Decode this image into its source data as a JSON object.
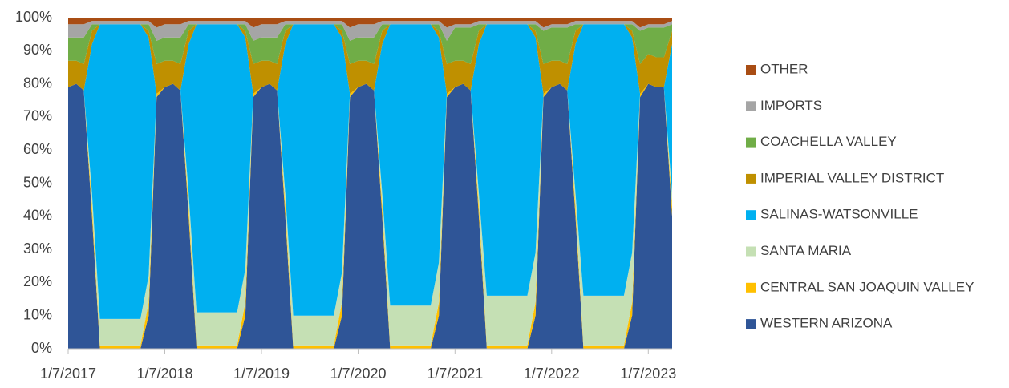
{
  "chart_data": {
    "type": "stacked_area",
    "x": [
      "1/7/2017",
      "2/7/2017",
      "3/7/2017",
      "4/7/2017",
      "5/7/2017",
      "6/7/2017",
      "7/7/2017",
      "8/7/2017",
      "9/7/2017",
      "10/7/2017",
      "11/7/2017",
      "12/7/2017",
      "1/7/2018",
      "2/7/2018",
      "3/7/2018",
      "4/7/2018",
      "5/7/2018",
      "6/7/2018",
      "7/7/2018",
      "8/7/2018",
      "9/7/2018",
      "10/7/2018",
      "11/7/2018",
      "12/7/2018",
      "1/7/2019",
      "2/7/2019",
      "3/7/2019",
      "4/7/2019",
      "5/7/2019",
      "6/7/2019",
      "7/7/2019",
      "8/7/2019",
      "9/7/2019",
      "10/7/2019",
      "11/7/2019",
      "12/7/2019",
      "1/7/2020",
      "2/7/2020",
      "3/7/2020",
      "4/7/2020",
      "5/7/2020",
      "6/7/2020",
      "7/7/2020",
      "8/7/2020",
      "9/7/2020",
      "10/7/2020",
      "11/7/2020",
      "12/7/2020",
      "1/7/2021",
      "2/7/2021",
      "3/7/2021",
      "4/7/2021",
      "5/7/2021",
      "6/7/2021",
      "7/7/2021",
      "8/7/2021",
      "9/7/2021",
      "10/7/2021",
      "11/7/2021",
      "12/7/2021",
      "1/7/2022",
      "2/7/2022",
      "3/7/2022",
      "4/7/2022",
      "5/7/2022",
      "6/7/2022",
      "7/7/2022",
      "8/7/2022",
      "9/7/2022",
      "10/7/2022",
      "11/7/2022",
      "12/7/2022",
      "1/7/2023",
      "2/7/2023",
      "3/7/2023",
      "4/7/2023"
    ],
    "xlim": [
      "1/7/2017",
      "4/7/2023"
    ],
    "xticks": [
      "1/7/2017",
      "1/7/2018",
      "1/7/2019",
      "1/7/2020",
      "1/7/2021",
      "1/7/2022",
      "1/7/2023"
    ],
    "ylim": [
      0,
      100
    ],
    "yticks": [
      {
        "value": 0,
        "label": "0%"
      },
      {
        "value": 10,
        "label": "10%"
      },
      {
        "value": 20,
        "label": "20%"
      },
      {
        "value": 30,
        "label": "30%"
      },
      {
        "value": 40,
        "label": "40%"
      },
      {
        "value": 50,
        "label": "50%"
      },
      {
        "value": 60,
        "label": "60%"
      },
      {
        "value": 70,
        "label": "70%"
      },
      {
        "value": 80,
        "label": "80%"
      },
      {
        "value": 90,
        "label": "90%"
      },
      {
        "value": 100,
        "label": "100%"
      }
    ],
    "series": [
      {
        "name": "WESTERN ARIZONA",
        "color": "#2f5597",
        "values": [
          79,
          80,
          78,
          40,
          0,
          0,
          0,
          0,
          0,
          0,
          10,
          76,
          79,
          80,
          78,
          40,
          0,
          0,
          0,
          0,
          0,
          0,
          10,
          76,
          79,
          80,
          78,
          40,
          0,
          0,
          0,
          0,
          0,
          0,
          10,
          76,
          79,
          80,
          78,
          40,
          0,
          0,
          0,
          0,
          0,
          0,
          10,
          76,
          79,
          80,
          78,
          40,
          0,
          0,
          0,
          0,
          0,
          0,
          10,
          76,
          79,
          80,
          78,
          40,
          0,
          0,
          0,
          0,
          0,
          0,
          10,
          76,
          80,
          79,
          79,
          40
        ]
      },
      {
        "name": "CENTRAL SAN JOAQUIN VALLEY",
        "color": "#ffc000",
        "values": [
          0,
          0,
          0,
          3,
          1,
          1,
          1,
          1,
          1,
          1,
          4,
          1,
          0,
          0,
          0,
          3,
          1,
          1,
          1,
          1,
          1,
          1,
          4,
          1,
          0,
          0,
          0,
          3,
          1,
          1,
          1,
          1,
          1,
          1,
          4,
          1,
          0,
          0,
          0,
          3,
          1,
          1,
          1,
          1,
          1,
          1,
          4,
          1,
          0,
          0,
          0,
          3,
          1,
          1,
          1,
          1,
          1,
          1,
          4,
          1,
          0,
          0,
          0,
          3,
          1,
          1,
          1,
          1,
          1,
          1,
          4,
          1,
          0,
          0,
          0,
          3
        ]
      },
      {
        "name": "SANTA MARIA",
        "color": "#c5e0b4",
        "values": [
          0,
          0,
          0,
          4,
          8,
          8,
          8,
          8,
          8,
          8,
          8,
          0,
          0,
          0,
          0,
          4,
          10,
          10,
          10,
          10,
          10,
          10,
          10,
          0,
          0,
          0,
          0,
          4,
          9,
          9,
          9,
          9,
          9,
          9,
          9,
          0,
          0,
          0,
          0,
          4,
          12,
          12,
          12,
          12,
          12,
          12,
          12,
          0,
          0,
          0,
          0,
          4,
          15,
          15,
          15,
          15,
          15,
          15,
          15,
          0,
          0,
          0,
          0,
          4,
          15,
          15,
          15,
          15,
          15,
          15,
          15,
          0,
          0,
          0,
          0,
          4
        ]
      },
      {
        "name": "SALINAS-WATSONVILLE",
        "color": "#00b0f0",
        "values": [
          0,
          0,
          0,
          45,
          89,
          89,
          89,
          89,
          89,
          89,
          72,
          0,
          0,
          0,
          0,
          45,
          87,
          87,
          87,
          87,
          87,
          87,
          70,
          0,
          0,
          0,
          0,
          45,
          88,
          88,
          88,
          88,
          88,
          88,
          71,
          0,
          0,
          0,
          0,
          45,
          85,
          85,
          85,
          85,
          85,
          85,
          68,
          0,
          0,
          0,
          0,
          45,
          82,
          82,
          82,
          82,
          82,
          82,
          65,
          0,
          0,
          0,
          0,
          45,
          82,
          82,
          82,
          82,
          82,
          82,
          65,
          0,
          0,
          0,
          0,
          45
        ]
      },
      {
        "name": "IMPERIAL VALLEY DISTRICT",
        "color": "#bf9000",
        "values": [
          8,
          7,
          8,
          4,
          0,
          0,
          0,
          0,
          0,
          0,
          2,
          9,
          8,
          7,
          8,
          4,
          0,
          0,
          0,
          0,
          0,
          0,
          2,
          9,
          8,
          7,
          8,
          4,
          0,
          0,
          0,
          0,
          0,
          0,
          2,
          9,
          8,
          7,
          8,
          4,
          0,
          0,
          0,
          0,
          0,
          0,
          2,
          9,
          8,
          7,
          8,
          4,
          0,
          0,
          0,
          0,
          0,
          0,
          2,
          9,
          8,
          7,
          8,
          4,
          0,
          0,
          0,
          0,
          0,
          0,
          2,
          9,
          9,
          9,
          9,
          4
        ]
      },
      {
        "name": "COACHELLA VALLEY",
        "color": "#70ad47",
        "values": [
          7,
          7,
          8,
          2,
          0,
          0,
          0,
          0,
          0,
          0,
          2,
          7,
          7,
          7,
          8,
          2,
          0,
          0,
          0,
          0,
          0,
          0,
          2,
          7,
          7,
          7,
          8,
          2,
          0,
          0,
          0,
          0,
          0,
          0,
          2,
          7,
          7,
          7,
          8,
          2,
          0,
          0,
          0,
          0,
          0,
          0,
          2,
          7,
          10,
          10,
          11,
          2,
          0,
          0,
          0,
          0,
          0,
          0,
          2,
          10,
          10,
          10,
          11,
          2,
          0,
          0,
          0,
          0,
          0,
          0,
          2,
          10,
          8,
          9,
          9,
          2
        ]
      },
      {
        "name": "IMPORTS",
        "color": "#a5a5a5",
        "values": [
          4,
          4,
          4,
          1,
          1,
          1,
          1,
          1,
          1,
          1,
          1,
          4,
          4,
          4,
          4,
          1,
          1,
          1,
          1,
          1,
          1,
          1,
          1,
          4,
          4,
          4,
          4,
          1,
          1,
          1,
          1,
          1,
          1,
          1,
          1,
          4,
          4,
          4,
          4,
          1,
          1,
          1,
          1,
          1,
          1,
          1,
          1,
          4,
          1,
          1,
          1,
          1,
          1,
          1,
          1,
          1,
          1,
          1,
          1,
          1,
          1,
          1,
          1,
          1,
          1,
          1,
          1,
          1,
          1,
          1,
          1,
          1,
          1,
          1,
          1,
          1
        ]
      },
      {
        "name": "OTHER",
        "color": "#a94d14",
        "values": [
          2,
          2,
          2,
          1,
          1,
          1,
          1,
          1,
          1,
          1,
          1,
          3,
          2,
          2,
          2,
          1,
          1,
          1,
          1,
          1,
          1,
          1,
          1,
          3,
          2,
          2,
          2,
          1,
          1,
          1,
          1,
          1,
          1,
          1,
          1,
          3,
          2,
          2,
          2,
          1,
          1,
          1,
          1,
          1,
          1,
          1,
          1,
          3,
          2,
          2,
          2,
          1,
          1,
          1,
          1,
          1,
          1,
          1,
          1,
          3,
          2,
          2,
          2,
          1,
          1,
          1,
          1,
          1,
          1,
          1,
          1,
          3,
          2,
          2,
          2,
          1
        ]
      }
    ]
  }
}
